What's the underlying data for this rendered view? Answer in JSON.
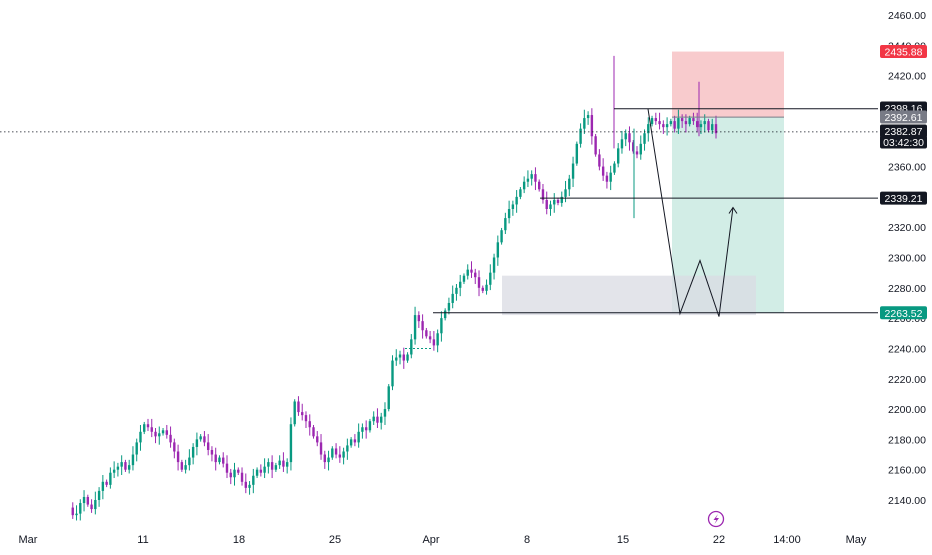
{
  "chart_data": {
    "type": "candlestick",
    "y_axis": {
      "position": "right",
      "ylim": [
        2126,
        2468
      ],
      "ticks": [
        "2460.00",
        "2440.00",
        "2420.00",
        "2400.00",
        "2380.00",
        "2360.00",
        "2340.00",
        "2320.00",
        "2300.00",
        "2280.00",
        "2260.00",
        "2240.00",
        "2220.00",
        "2200.00",
        "2180.00",
        "2160.00",
        "2140.00"
      ]
    },
    "x_axis": {
      "labels": [
        "Mar",
        "11",
        "18",
        "25",
        "Apr",
        "8",
        "15",
        "22",
        "14:00",
        "May"
      ]
    },
    "colors": {
      "up": "#089981",
      "down": "#9c27b0",
      "stop_zone": "#f7c5c8",
      "target_zone": "#cdebe3",
      "demand_zone": "#d9dbe3",
      "line": "#131722"
    },
    "price_tags": [
      {
        "value": "2435.88",
        "bg": "#f23645",
        "fg": "#ffffff"
      },
      {
        "value": "2398.16",
        "bg": "#131722",
        "fg": "#ffffff"
      },
      {
        "value": "2392.61",
        "bg": "#787b86",
        "fg": "#ffffff"
      },
      {
        "value": "2382.87",
        "bg": "#131722",
        "fg": "#ffffff"
      },
      {
        "value": "03:42:30",
        "bg": "#131722",
        "fg": "#ffffff"
      },
      {
        "value": "2339.21",
        "bg": "#131722",
        "fg": "#ffffff"
      },
      {
        "value": "2263.52",
        "bg": "#089981",
        "fg": "#ffffff"
      }
    ],
    "horizontal_lines": [
      2398.16,
      2339.21,
      2263.52
    ],
    "current_price_line": 2382.87,
    "position_tool": {
      "entry": 2392.61,
      "stop": 2435.88,
      "target": 2263.52
    },
    "demand_zone": {
      "top": 2288,
      "bottom": 2262
    },
    "projected_path": [
      2398,
      2263,
      2298,
      2261,
      2333
    ],
    "series": [
      2135,
      2130,
      2131,
      2138,
      2142,
      2137,
      2134,
      2140,
      2146,
      2152,
      2150,
      2158,
      2160,
      2162,
      2165,
      2160,
      2163,
      2170,
      2178,
      2185,
      2190,
      2188,
      2185,
      2182,
      2184,
      2186,
      2183,
      2178,
      2172,
      2165,
      2160,
      2163,
      2168,
      2175,
      2180,
      2182,
      2178,
      2173,
      2170,
      2165,
      2168,
      2164,
      2158,
      2155,
      2160,
      2158,
      2152,
      2148,
      2150,
      2156,
      2160,
      2158,
      2162,
      2165,
      2160,
      2163,
      2166,
      2162,
      2165,
      2190,
      2205,
      2198,
      2196,
      2192,
      2188,
      2182,
      2178,
      2170,
      2165,
      2168,
      2174,
      2170,
      2168,
      2172,
      2176,
      2180,
      2178,
      2185,
      2188,
      2186,
      2192,
      2195,
      2191,
      2195,
      2200,
      2215,
      2232,
      2234,
      2236,
      2232,
      2236,
      2246,
      2262,
      2258,
      2252,
      2248,
      2246,
      2242,
      2250,
      2260,
      2265,
      2270,
      2276,
      2280,
      2284,
      2288,
      2292,
      2290,
      2287,
      2280,
      2278,
      2282,
      2290,
      2300,
      2310,
      2318,
      2326,
      2332,
      2335,
      2340,
      2345,
      2350,
      2352,
      2355,
      2350,
      2345,
      2338,
      2332,
      2335,
      2338,
      2336,
      2340,
      2345,
      2352,
      2362,
      2375,
      2385,
      2392,
      2394,
      2380,
      2368,
      2360,
      2354,
      2350,
      2356,
      2362,
      2372,
      2378,
      2382,
      2376,
      2370,
      2368,
      2375,
      2382,
      2388,
      2392,
      2390,
      2388,
      2386,
      2388,
      2390,
      2385,
      2392,
      2390,
      2388,
      2392,
      2390,
      2386,
      2388,
      2390,
      2384,
      2388,
      2382
    ]
  }
}
